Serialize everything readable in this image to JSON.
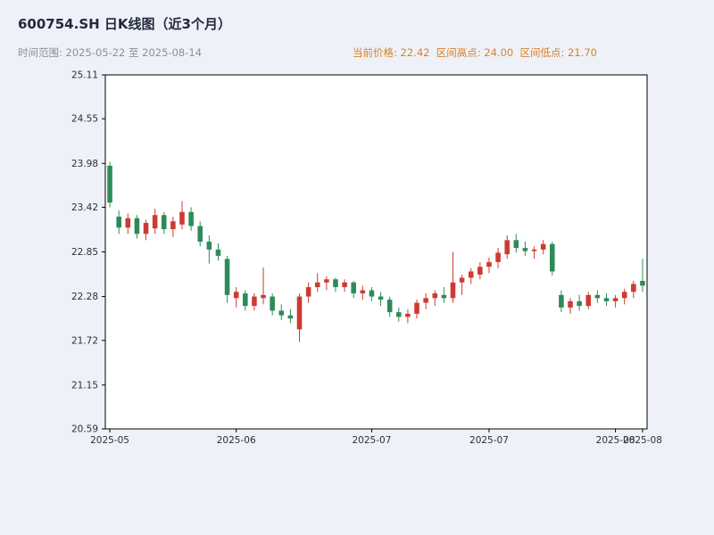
{
  "header": {
    "title": "600754.SH 日K线图（近3个月）",
    "range_label": "时间范围: 2025-05-22 至 2025-08-14",
    "stats_label": "当前价格: 22.42  区间高点: 24.00  区间低点: 21.70",
    "current_price": "22.42",
    "range_high": "24.00",
    "range_low": "21.70"
  },
  "colors": {
    "background": "#eef1f8",
    "plot_bg": "#ffffff",
    "up": "#cc3b33",
    "down": "#2e8b57",
    "axis_text": "#2b2f38",
    "border": "#000000",
    "title": "#232a3d",
    "subtitle": "#8a909b",
    "stats": "#d9822b"
  },
  "chart_data": {
    "type": "candlestick",
    "title": "600754.SH 日K线图（近3个月）",
    "xlabel": "",
    "ylabel": "",
    "grid": false,
    "legend": false,
    "ylim": [
      20.59,
      25.11
    ],
    "y_ticks": [
      25.11,
      24.55,
      23.98,
      23.42,
      22.85,
      22.28,
      21.72,
      21.15,
      20.59
    ],
    "x_ticks": [
      {
        "label": "2025-05",
        "index": 0
      },
      {
        "label": "2025-06",
        "index": 14
      },
      {
        "label": "2025-07",
        "index": 29
      },
      {
        "label": "2025-07",
        "index": 42
      },
      {
        "label": "2025-08",
        "index": 56
      },
      {
        "label": "2025-08",
        "index": 59
      }
    ],
    "ohlc": [
      {
        "date": "2025-05-22",
        "o": 23.95,
        "h": 24.0,
        "l": 23.42,
        "c": 23.48
      },
      {
        "date": "2025-05-23",
        "o": 23.3,
        "h": 23.38,
        "l": 23.08,
        "c": 23.16
      },
      {
        "date": "2025-05-26",
        "o": 23.16,
        "h": 23.34,
        "l": 23.08,
        "c": 23.28
      },
      {
        "date": "2025-05-27",
        "o": 23.28,
        "h": 23.32,
        "l": 23.02,
        "c": 23.08
      },
      {
        "date": "2025-05-28",
        "o": 23.08,
        "h": 23.26,
        "l": 23.0,
        "c": 23.22
      },
      {
        "date": "2025-05-29",
        "o": 23.15,
        "h": 23.4,
        "l": 23.08,
        "c": 23.32
      },
      {
        "date": "2025-05-30",
        "o": 23.32,
        "h": 23.36,
        "l": 23.08,
        "c": 23.14
      },
      {
        "date": "2025-06-03",
        "o": 23.14,
        "h": 23.3,
        "l": 23.04,
        "c": 23.24
      },
      {
        "date": "2025-06-04",
        "o": 23.2,
        "h": 23.5,
        "l": 23.14,
        "c": 23.36
      },
      {
        "date": "2025-06-05",
        "o": 23.36,
        "h": 23.42,
        "l": 23.12,
        "c": 23.18
      },
      {
        "date": "2025-06-06",
        "o": 23.18,
        "h": 23.24,
        "l": 22.92,
        "c": 22.98
      },
      {
        "date": "2025-06-09",
        "o": 22.98,
        "h": 23.06,
        "l": 22.7,
        "c": 22.88
      },
      {
        "date": "2025-06-10",
        "o": 22.88,
        "h": 22.96,
        "l": 22.74,
        "c": 22.8
      },
      {
        "date": "2025-06-11",
        "o": 22.76,
        "h": 22.8,
        "l": 22.2,
        "c": 22.3
      },
      {
        "date": "2025-06-12",
        "o": 22.26,
        "h": 22.4,
        "l": 22.14,
        "c": 22.34
      },
      {
        "date": "2025-06-13",
        "o": 22.32,
        "h": 22.36,
        "l": 22.1,
        "c": 22.16
      },
      {
        "date": "2025-06-16",
        "o": 22.16,
        "h": 22.32,
        "l": 22.1,
        "c": 22.28
      },
      {
        "date": "2025-06-17",
        "o": 22.26,
        "h": 22.65,
        "l": 22.18,
        "c": 22.3
      },
      {
        "date": "2025-06-18",
        "o": 22.28,
        "h": 22.32,
        "l": 22.04,
        "c": 22.1
      },
      {
        "date": "2025-06-19",
        "o": 22.1,
        "h": 22.18,
        "l": 21.98,
        "c": 22.04
      },
      {
        "date": "2025-06-20",
        "o": 22.04,
        "h": 22.12,
        "l": 21.94,
        "c": 22.0
      },
      {
        "date": "2025-06-23",
        "o": 21.86,
        "h": 22.32,
        "l": 21.7,
        "c": 22.28
      },
      {
        "date": "2025-06-24",
        "o": 22.28,
        "h": 22.46,
        "l": 22.2,
        "c": 22.4
      },
      {
        "date": "2025-06-25",
        "o": 22.4,
        "h": 22.58,
        "l": 22.34,
        "c": 22.46
      },
      {
        "date": "2025-06-26",
        "o": 22.46,
        "h": 22.54,
        "l": 22.36,
        "c": 22.5
      },
      {
        "date": "2025-06-27",
        "o": 22.5,
        "h": 22.52,
        "l": 22.34,
        "c": 22.4
      },
      {
        "date": "2025-06-30",
        "o": 22.4,
        "h": 22.5,
        "l": 22.34,
        "c": 22.46
      },
      {
        "date": "2025-07-01",
        "o": 22.46,
        "h": 22.48,
        "l": 22.26,
        "c": 22.32
      },
      {
        "date": "2025-07-02",
        "o": 22.32,
        "h": 22.42,
        "l": 22.24,
        "c": 22.36
      },
      {
        "date": "2025-07-03",
        "o": 22.36,
        "h": 22.4,
        "l": 22.22,
        "c": 22.28
      },
      {
        "date": "2025-07-04",
        "o": 22.28,
        "h": 22.34,
        "l": 22.16,
        "c": 22.24
      },
      {
        "date": "2025-07-07",
        "o": 22.24,
        "h": 22.28,
        "l": 22.02,
        "c": 22.08
      },
      {
        "date": "2025-07-08",
        "o": 22.08,
        "h": 22.14,
        "l": 21.96,
        "c": 22.02
      },
      {
        "date": "2025-07-09",
        "o": 22.02,
        "h": 22.12,
        "l": 21.94,
        "c": 22.06
      },
      {
        "date": "2025-07-10",
        "o": 22.06,
        "h": 22.24,
        "l": 22.0,
        "c": 22.2
      },
      {
        "date": "2025-07-11",
        "o": 22.2,
        "h": 22.32,
        "l": 22.12,
        "c": 22.26
      },
      {
        "date": "2025-07-14",
        "o": 22.26,
        "h": 22.36,
        "l": 22.16,
        "c": 22.32
      },
      {
        "date": "2025-07-15",
        "o": 22.3,
        "h": 22.4,
        "l": 22.2,
        "c": 22.26
      },
      {
        "date": "2025-07-16",
        "o": 22.26,
        "h": 22.85,
        "l": 22.2,
        "c": 22.46
      },
      {
        "date": "2025-07-17",
        "o": 22.46,
        "h": 22.56,
        "l": 22.3,
        "c": 22.52
      },
      {
        "date": "2025-07-18",
        "o": 22.52,
        "h": 22.64,
        "l": 22.44,
        "c": 22.6
      },
      {
        "date": "2025-07-21",
        "o": 22.56,
        "h": 22.72,
        "l": 22.5,
        "c": 22.66
      },
      {
        "date": "2025-07-22",
        "o": 22.66,
        "h": 22.78,
        "l": 22.58,
        "c": 22.72
      },
      {
        "date": "2025-07-23",
        "o": 22.72,
        "h": 22.9,
        "l": 22.64,
        "c": 22.84
      },
      {
        "date": "2025-07-24",
        "o": 22.82,
        "h": 23.06,
        "l": 22.76,
        "c": 23.0
      },
      {
        "date": "2025-07-25",
        "o": 23.0,
        "h": 23.08,
        "l": 22.84,
        "c": 22.9
      },
      {
        "date": "2025-07-28",
        "o": 22.9,
        "h": 22.98,
        "l": 22.8,
        "c": 22.86
      },
      {
        "date": "2025-07-29",
        "o": 22.86,
        "h": 22.92,
        "l": 22.76,
        "c": 22.88
      },
      {
        "date": "2025-07-30",
        "o": 22.88,
        "h": 23.0,
        "l": 22.82,
        "c": 22.95
      },
      {
        "date": "2025-07-31",
        "o": 22.95,
        "h": 22.98,
        "l": 22.55,
        "c": 22.6
      },
      {
        "date": "2025-08-01",
        "o": 22.3,
        "h": 22.36,
        "l": 22.08,
        "c": 22.14
      },
      {
        "date": "2025-08-04",
        "o": 22.14,
        "h": 22.26,
        "l": 22.06,
        "c": 22.22
      },
      {
        "date": "2025-08-05",
        "o": 22.22,
        "h": 22.3,
        "l": 22.1,
        "c": 22.16
      },
      {
        "date": "2025-08-06",
        "o": 22.16,
        "h": 22.34,
        "l": 22.12,
        "c": 22.3
      },
      {
        "date": "2025-08-07",
        "o": 22.3,
        "h": 22.36,
        "l": 22.2,
        "c": 22.26
      },
      {
        "date": "2025-08-08",
        "o": 22.26,
        "h": 22.32,
        "l": 22.16,
        "c": 22.22
      },
      {
        "date": "2025-08-11",
        "o": 22.22,
        "h": 22.3,
        "l": 22.14,
        "c": 22.26
      },
      {
        "date": "2025-08-12",
        "o": 22.26,
        "h": 22.38,
        "l": 22.18,
        "c": 22.34
      },
      {
        "date": "2025-08-13",
        "o": 22.34,
        "h": 22.48,
        "l": 22.26,
        "c": 22.44
      },
      {
        "date": "2025-08-14",
        "o": 22.48,
        "h": 22.76,
        "l": 22.34,
        "c": 22.42
      }
    ]
  }
}
